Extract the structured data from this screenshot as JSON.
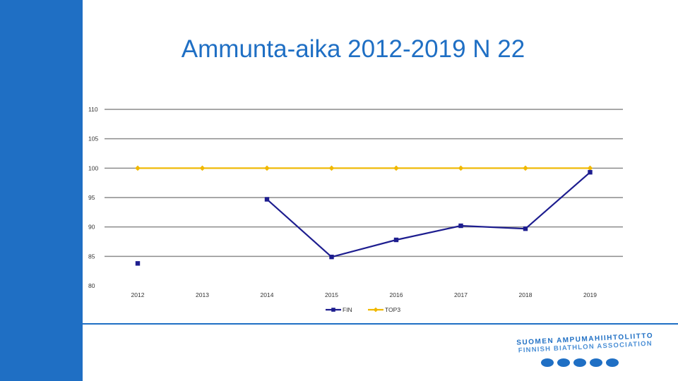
{
  "slide": {
    "title": "Ammunta-aika 2012-2019 N 22"
  },
  "logo": {
    "line1": "SUOMEN AMPUMAHIIHTOLIITTO",
    "line2": "FINNISH BIATHLON ASSOCIATION",
    "color": "#1f6fc4"
  },
  "colors": {
    "accent": "#1f6fc4",
    "fin_series": "#1d1d8f",
    "top3_series": "#f0b800",
    "grid": "#8c8c8c"
  },
  "chart_data": {
    "type": "line",
    "title": "",
    "xlabel": "",
    "ylabel": "",
    "categories": [
      "2012",
      "2013",
      "2014",
      "2015",
      "2016",
      "2017",
      "2018",
      "2019"
    ],
    "ylim": [
      80,
      110
    ],
    "yticks": [
      80,
      85,
      90,
      95,
      100,
      105,
      110
    ],
    "grid": true,
    "legend_position": "bottom",
    "series": [
      {
        "name": "FIN",
        "color": "#1d1d8f",
        "marker": "square",
        "values": [
          83.8,
          null,
          94.7,
          84.9,
          87.8,
          90.2,
          89.7,
          99.3
        ]
      },
      {
        "name": "TOP3",
        "color": "#f0b800",
        "marker": "diamond",
        "values": [
          100,
          100,
          100,
          100,
          100,
          100,
          100,
          100
        ]
      }
    ]
  }
}
